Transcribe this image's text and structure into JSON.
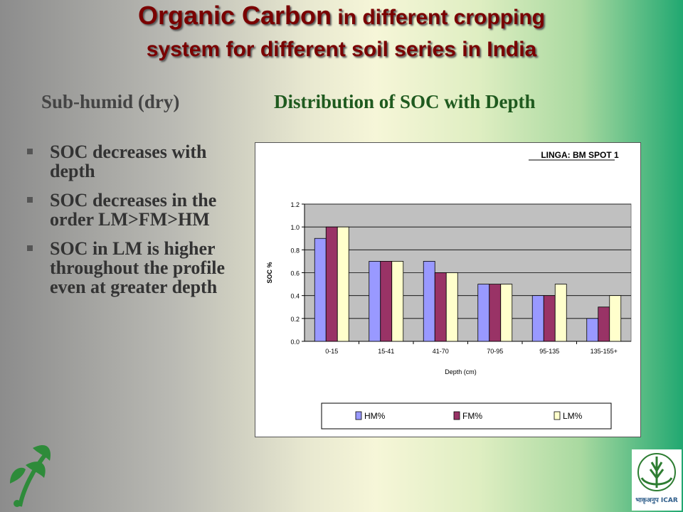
{
  "slide": {
    "title_big": "Organic Carbon",
    "title_rest": " in different cropping",
    "title_line2": "system for different soil series in India",
    "subhead_left": "Sub-humid (dry)",
    "subhead_right": "Distribution of SOC with Depth",
    "bullets": [
      "SOC decreases with depth",
      "SOC decreases in the order LM>FM>HM",
      "SOC in LM is higher throughout the profile even at greater depth"
    ],
    "logo_right_text": "भाकृअनुप ICAR"
  },
  "colors": {
    "title": "#7a0000",
    "hm": "#9999ff",
    "fm": "#993366",
    "lm": "#ffffcc",
    "plot_bg": "#c0c0c0"
  },
  "chart_data": {
    "type": "bar",
    "title": "LINGA: BM SPOT 1",
    "xlabel": "Depth (cm)",
    "ylabel": "SOC %",
    "ylim": [
      0,
      1.2
    ],
    "yticks": [
      "0.0",
      "0.2",
      "0.4",
      "0.6",
      "0.8",
      "1.0",
      "1.2"
    ],
    "grid": true,
    "legend_position": "bottom",
    "categories": [
      "0-15",
      "15-41",
      "41-70",
      "70-95",
      "95-135",
      "135-155+"
    ],
    "series": [
      {
        "name": "HM%",
        "values": [
          0.9,
          0.7,
          0.7,
          0.5,
          0.4,
          0.2
        ]
      },
      {
        "name": "FM%",
        "values": [
          1.0,
          0.7,
          0.6,
          0.5,
          0.4,
          0.3
        ]
      },
      {
        "name": "LM%",
        "values": [
          1.0,
          0.7,
          0.6,
          0.5,
          0.5,
          0.4
        ]
      }
    ]
  }
}
